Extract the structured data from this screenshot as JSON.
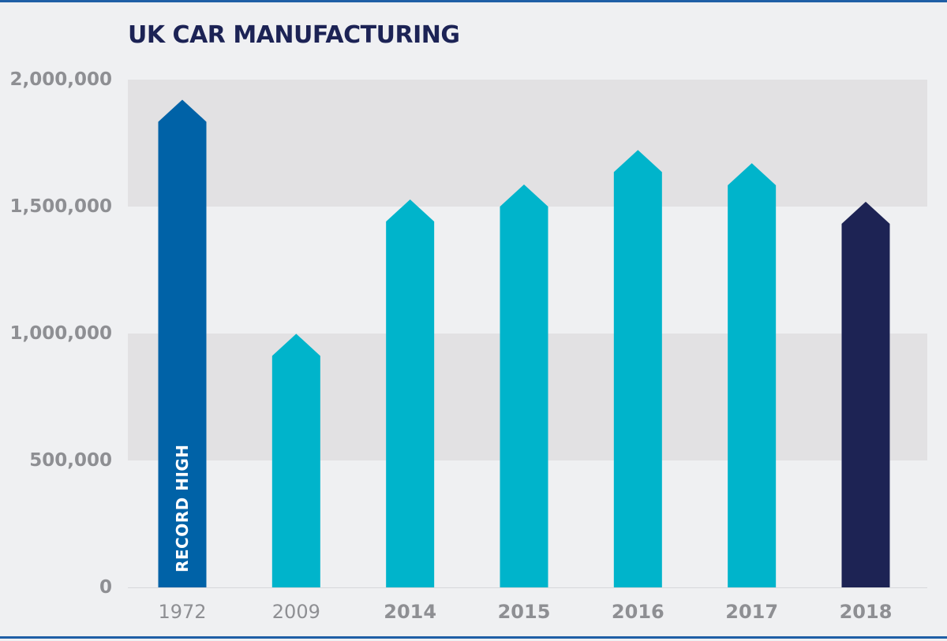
{
  "chart_data": {
    "type": "bar",
    "title": "UK CAR MANUFACTURING",
    "xlabel": "",
    "ylabel": "",
    "categories": [
      "1972",
      "2009",
      "2014",
      "2015",
      "2016",
      "2017",
      "2018"
    ],
    "values": [
      1921000,
      999000,
      1528000,
      1587000,
      1723000,
      1671000,
      1519000
    ],
    "category_bold": [
      false,
      false,
      true,
      true,
      true,
      true,
      true
    ],
    "bar_colors": [
      "#0062a7",
      "#00b4cb",
      "#00b4cb",
      "#00b4cb",
      "#00b4cb",
      "#00b4cb",
      "#1d2354"
    ],
    "yticks": [
      0,
      500000,
      1000000,
      1500000,
      2000000
    ],
    "ytick_labels": [
      "0",
      "500,000",
      "1,000,000",
      "1,500,000",
      "2,000,000"
    ],
    "ylim": [
      0,
      2000000
    ],
    "grid": "alternating horizontal bands",
    "legend": "none",
    "annotations": [
      {
        "category": "1972",
        "text": "RECORD HIGH"
      }
    ]
  },
  "colors": {
    "background": "#eff0f2",
    "band": "#e2e1e3",
    "frame": "#1f5fa6",
    "title": "#1c2355",
    "axis_text": "#8e8f93"
  }
}
